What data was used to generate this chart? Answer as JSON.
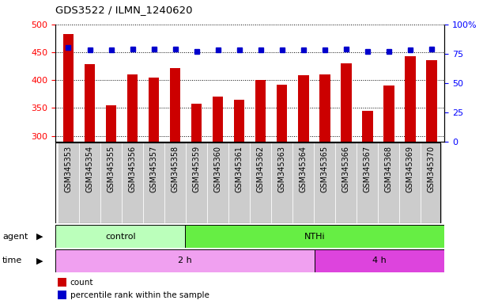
{
  "title": "GDS3522 / ILMN_1240620",
  "samples": [
    "GSM345353",
    "GSM345354",
    "GSM345355",
    "GSM345356",
    "GSM345357",
    "GSM345358",
    "GSM345359",
    "GSM345360",
    "GSM345361",
    "GSM345362",
    "GSM345363",
    "GSM345364",
    "GSM345365",
    "GSM345366",
    "GSM345367",
    "GSM345368",
    "GSM345369",
    "GSM345370"
  ],
  "counts": [
    483,
    428,
    355,
    410,
    405,
    422,
    358,
    370,
    365,
    400,
    392,
    408,
    410,
    430,
    345,
    390,
    443,
    436
  ],
  "percentile_ranks": [
    80,
    78,
    78,
    79,
    79,
    79,
    77,
    78,
    78,
    78,
    78,
    78,
    78,
    79,
    77,
    77,
    78,
    79
  ],
  "bar_color": "#cc0000",
  "dot_color": "#0000cc",
  "ylim_left": [
    290,
    500
  ],
  "ylim_right": [
    0,
    100
  ],
  "yticks_left": [
    300,
    350,
    400,
    450,
    500
  ],
  "yticks_right": [
    0,
    25,
    50,
    75,
    100
  ],
  "ytick_labels_right": [
    "0",
    "25",
    "50",
    "75",
    "100%"
  ],
  "agent_groups": [
    {
      "label": "control",
      "start": 0,
      "end": 6,
      "color": "#bbffbb"
    },
    {
      "label": "NTHi",
      "start": 6,
      "end": 18,
      "color": "#66ee44"
    }
  ],
  "time_groups": [
    {
      "label": "2 h",
      "start": 0,
      "end": 12,
      "color": "#f0a0f0"
    },
    {
      "label": "4 h",
      "start": 12,
      "end": 18,
      "color": "#dd44dd"
    }
  ],
  "legend_items": [
    {
      "label": "count",
      "color": "#cc0000"
    },
    {
      "label": "percentile rank within the sample",
      "color": "#0000cc"
    }
  ],
  "ticklabel_bg": "#cccccc",
  "plot_bg": "#ffffff",
  "fig_bg": "#ffffff"
}
